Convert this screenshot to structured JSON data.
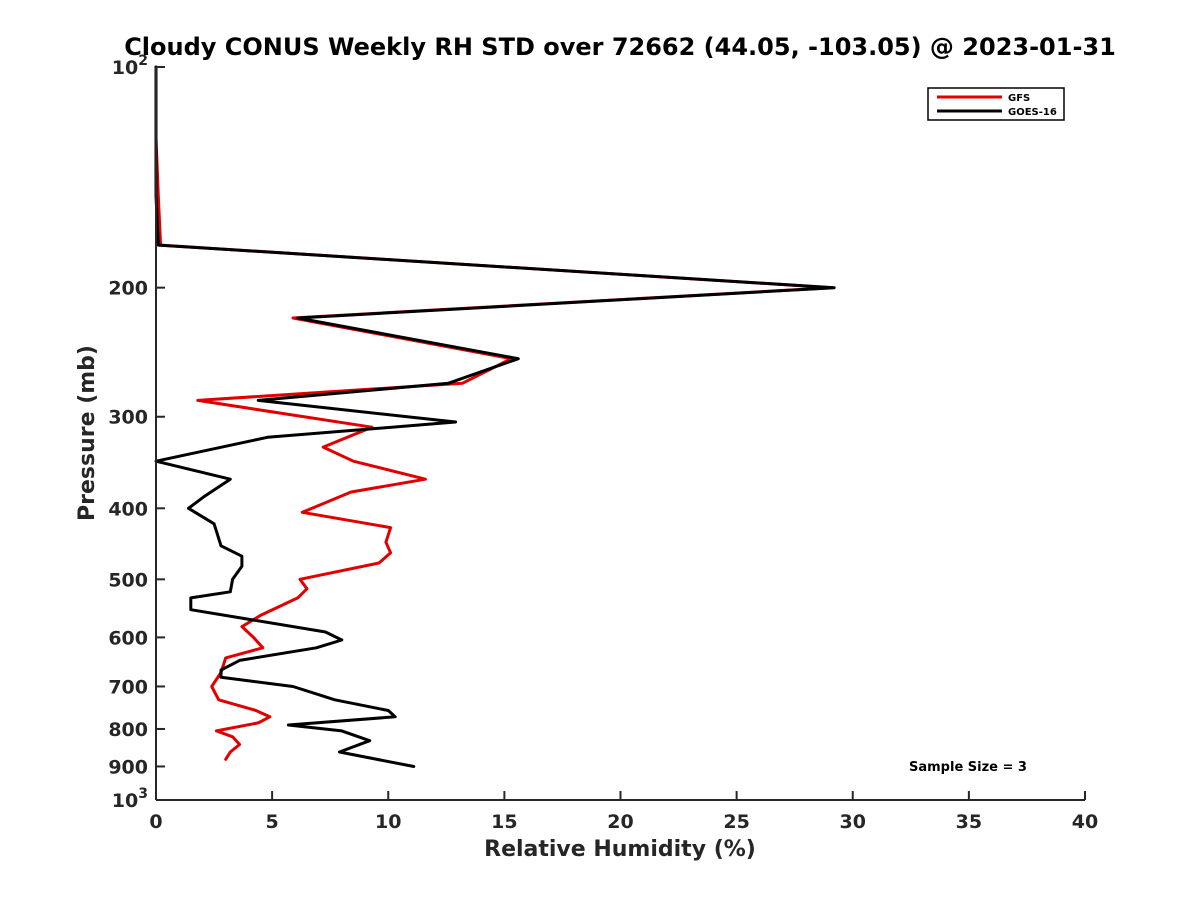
{
  "chart_data": {
    "type": "line",
    "title": "Cloudy CONUS Weekly RH STD over 72662 (44.05, -103.05) @ 2023-01-31",
    "xlabel": "Relative Humidity (%)",
    "ylabel": "Pressure (mb)",
    "xlim": [
      0,
      40
    ],
    "ylim": [
      100,
      1000
    ],
    "y_scale": "log",
    "y_reversed": true,
    "x_ticks": [
      0,
      5,
      10,
      15,
      20,
      25,
      30,
      35,
      40
    ],
    "y_ticks": [
      {
        "value": 100,
        "label": "10",
        "sup": "2"
      },
      {
        "value": 200,
        "label": "200"
      },
      {
        "value": 300,
        "label": "300"
      },
      {
        "value": 400,
        "label": "400"
      },
      {
        "value": 500,
        "label": "500"
      },
      {
        "value": 600,
        "label": "600"
      },
      {
        "value": 700,
        "label": "700"
      },
      {
        "value": 800,
        "label": "800"
      },
      {
        "value": 900,
        "label": "900"
      },
      {
        "value": 1000,
        "label": "10",
        "sup": "3"
      }
    ],
    "legend_position": "top-right",
    "annotation": "Sample Size = 3",
    "series": [
      {
        "name": "GFS",
        "color": "#e00000",
        "points": [
          [
            0.0,
            100
          ],
          [
            0.0,
            125
          ],
          [
            0.1,
            150
          ],
          [
            0.2,
            175
          ],
          [
            29.1,
            200
          ],
          [
            5.9,
            220
          ],
          [
            15.3,
            250
          ],
          [
            13.2,
            270
          ],
          [
            1.8,
            285
          ],
          [
            9.3,
            310
          ],
          [
            7.2,
            330
          ],
          [
            8.5,
            345
          ],
          [
            11.6,
            365
          ],
          [
            8.4,
            380
          ],
          [
            6.3,
            405
          ],
          [
            10.1,
            425
          ],
          [
            9.9,
            445
          ],
          [
            10.1,
            460
          ],
          [
            9.6,
            475
          ],
          [
            6.2,
            500
          ],
          [
            6.5,
            515
          ],
          [
            6.1,
            530
          ],
          [
            4.5,
            560
          ],
          [
            3.7,
            580
          ],
          [
            4.2,
            600
          ],
          [
            4.6,
            620
          ],
          [
            3.0,
            640
          ],
          [
            2.8,
            670
          ],
          [
            2.4,
            700
          ],
          [
            2.7,
            730
          ],
          [
            4.3,
            755
          ],
          [
            4.9,
            770
          ],
          [
            4.4,
            785
          ],
          [
            2.6,
            805
          ],
          [
            3.3,
            820
          ],
          [
            3.6,
            840
          ],
          [
            3.2,
            860
          ],
          [
            3.0,
            880
          ]
        ]
      },
      {
        "name": "GOES-16",
        "color": "#000000",
        "points": [
          [
            0.0,
            100
          ],
          [
            0.0,
            125
          ],
          [
            0.0,
            150
          ],
          [
            0.1,
            175
          ],
          [
            29.2,
            200
          ],
          [
            6.1,
            220
          ],
          [
            15.6,
            250
          ],
          [
            12.6,
            270
          ],
          [
            4.4,
            285
          ],
          [
            12.9,
            305
          ],
          [
            4.8,
            320
          ],
          [
            0.0,
            345
          ],
          [
            3.2,
            365
          ],
          [
            2.1,
            385
          ],
          [
            1.4,
            400
          ],
          [
            2.5,
            420
          ],
          [
            2.8,
            450
          ],
          [
            3.7,
            465
          ],
          [
            3.7,
            480
          ],
          [
            3.3,
            500
          ],
          [
            3.2,
            520
          ],
          [
            1.5,
            530
          ],
          [
            1.5,
            550
          ],
          [
            7.3,
            590
          ],
          [
            8.0,
            605
          ],
          [
            6.9,
            620
          ],
          [
            3.6,
            645
          ],
          [
            2.8,
            665
          ],
          [
            2.8,
            680
          ],
          [
            5.9,
            700
          ],
          [
            7.7,
            730
          ],
          [
            10.0,
            755
          ],
          [
            10.3,
            770
          ],
          [
            5.7,
            790
          ],
          [
            8.0,
            805
          ],
          [
            9.2,
            830
          ],
          [
            7.9,
            860
          ],
          [
            11.1,
            900
          ]
        ]
      }
    ]
  }
}
